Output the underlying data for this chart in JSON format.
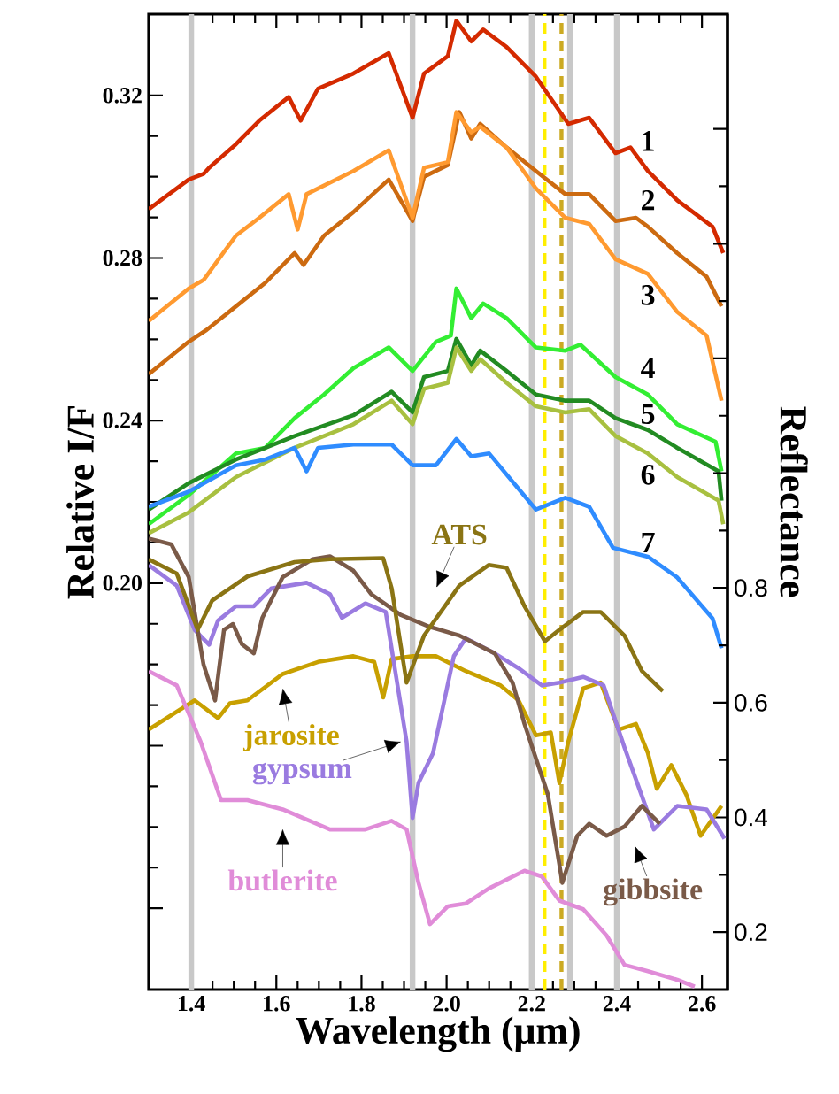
{
  "chart_data": {
    "type": "line",
    "xlabel": "Wavelength (μm)",
    "ylabel": "Relative I/F",
    "y2label": "Reflectance",
    "xlim": [
      1.3,
      2.66
    ],
    "ylim": [
      0.1,
      0.34
    ],
    "y2lim": [
      0.1,
      1.8
    ],
    "xticks": [
      1.4,
      1.6,
      1.8,
      {
        "value": 2.0,
        "label": "2.0"
      },
      2.2,
      2.4,
      2.6
    ],
    "yticks": [
      {
        "value": 0.12,
        "label": null
      },
      {
        "value": 0.16,
        "label": null
      },
      {
        "value": 0.2,
        "label": "0.20"
      },
      0.24,
      0.28,
      0.32
    ],
    "y2ticks": [
      0.2,
      0.4,
      0.6,
      0.8,
      {
        "value": 1.0,
        "label": null
      },
      {
        "value": 1.2,
        "label": null
      },
      {
        "value": 1.4,
        "label": null
      },
      {
        "value": 1.6,
        "label": null
      }
    ],
    "grid": false,
    "marker": "none",
    "line_style": "solid",
    "ref_lines": [
      {
        "axis": "x",
        "value": 1.4,
        "color": "#c8c8c8",
        "line_style": "solid"
      },
      {
        "axis": "x",
        "value": 1.92,
        "color": "#c8c8c8",
        "line_style": "solid"
      },
      {
        "axis": "x",
        "value": 2.2,
        "color": "#c8c8c8",
        "line_style": "solid"
      },
      {
        "axis": "x",
        "value": 2.29,
        "color": "#c8c8c8",
        "line_style": "solid"
      },
      {
        "axis": "x",
        "value": 2.4,
        "color": "#c8c8c8",
        "line_style": "solid"
      },
      {
        "axis": "x",
        "value": 2.23,
        "color": "#ffee00",
        "line_style": "dashed"
      },
      {
        "axis": "x",
        "value": 2.27,
        "color": "#ccaa22",
        "line_style": "dashed"
      }
    ],
    "series": [
      {
        "name": "1",
        "color": "#d42a00",
        "x": [
          1.3,
          1.394,
          1.429,
          1.442,
          1.505,
          1.56,
          1.629,
          1.657,
          1.698,
          1.781,
          1.864,
          1.92,
          1.947,
          2.003,
          2.023,
          2.058,
          2.086,
          2.141,
          2.21,
          2.286,
          2.335,
          2.397,
          2.432,
          2.473,
          2.542,
          2.625,
          2.65
        ],
        "values": [
          0.292,
          0.2993,
          0.3007,
          0.3022,
          0.308,
          0.3138,
          0.3196,
          0.3138,
          0.3217,
          0.3254,
          0.3304,
          0.3145,
          0.3254,
          0.3297,
          0.3384,
          0.3333,
          0.3362,
          0.3319,
          0.3246,
          0.313,
          0.3145,
          0.3058,
          0.3072,
          0.3014,
          0.2942,
          0.2877,
          0.2812
        ]
      },
      {
        "name": "2",
        "color": "#cc6a10",
        "x": [
          1.3,
          1.394,
          1.436,
          1.505,
          1.574,
          1.643,
          1.664,
          1.712,
          1.781,
          1.864,
          1.92,
          1.947,
          2.003,
          2.03,
          2.058,
          2.079,
          2.141,
          2.21,
          2.279,
          2.335,
          2.397,
          2.445,
          2.473,
          2.542,
          2.611,
          2.646
        ],
        "values": [
          0.2514,
          0.2594,
          0.2623,
          0.2681,
          0.2739,
          0.2812,
          0.2783,
          0.2855,
          0.2913,
          0.2993,
          0.2891,
          0.3,
          0.3029,
          0.3159,
          0.3094,
          0.313,
          0.3072,
          0.3014,
          0.2957,
          0.2957,
          0.2891,
          0.2899,
          0.2877,
          0.2812,
          0.2754,
          0.2681
        ]
      },
      {
        "name": "3",
        "color": "#ff9a30",
        "x": [
          1.3,
          1.394,
          1.429,
          1.505,
          1.56,
          1.629,
          1.65,
          1.671,
          1.781,
          1.864,
          1.92,
          1.947,
          2.003,
          2.023,
          2.058,
          2.079,
          2.141,
          2.21,
          2.279,
          2.335,
          2.397,
          2.473,
          2.542,
          2.611,
          2.646
        ],
        "values": [
          0.2645,
          0.2725,
          0.2746,
          0.2855,
          0.2899,
          0.2957,
          0.287,
          0.2957,
          0.3014,
          0.3065,
          0.2899,
          0.3022,
          0.3036,
          0.3159,
          0.3109,
          0.3123,
          0.3072,
          0.2971,
          0.2899,
          0.2884,
          0.2797,
          0.2761,
          0.2667,
          0.2609,
          0.2449
        ]
      },
      {
        "name": "4",
        "color": "#33ee33",
        "x": [
          1.3,
          1.394,
          1.505,
          1.574,
          1.643,
          1.712,
          1.781,
          1.864,
          1.92,
          1.975,
          2.01,
          2.023,
          2.058,
          2.086,
          2.141,
          2.21,
          2.279,
          2.314,
          2.397,
          2.473,
          2.542,
          2.632,
          2.646
        ],
        "values": [
          0.2145,
          0.2217,
          0.2319,
          0.2333,
          0.2406,
          0.2464,
          0.2529,
          0.258,
          0.2522,
          0.2594,
          0.2609,
          0.2725,
          0.2652,
          0.2688,
          0.2652,
          0.258,
          0.2572,
          0.2587,
          0.2507,
          0.2464,
          0.2391,
          0.2348,
          0.2275
        ]
      },
      {
        "name": "5",
        "color": "#228b22",
        "x": [
          1.3,
          1.394,
          1.505,
          1.643,
          1.781,
          1.871,
          1.92,
          1.947,
          2.003,
          2.023,
          2.058,
          2.079,
          2.141,
          2.21,
          2.279,
          2.335,
          2.397,
          2.473,
          2.542,
          2.639,
          2.646
        ],
        "values": [
          0.2181,
          0.2246,
          0.2304,
          0.2362,
          0.2413,
          0.2471,
          0.242,
          0.2507,
          0.2522,
          0.2601,
          0.2536,
          0.2572,
          0.2522,
          0.2464,
          0.2449,
          0.2449,
          0.2406,
          0.2377,
          0.2333,
          0.2275,
          0.2203
        ]
      },
      {
        "name": "6",
        "color": "#a8c040",
        "x": [
          1.3,
          1.394,
          1.505,
          1.643,
          1.781,
          1.871,
          1.92,
          1.947,
          2.003,
          2.023,
          2.058,
          2.079,
          2.141,
          2.21,
          2.279,
          2.335,
          2.397,
          2.473,
          2.542,
          2.639,
          2.65
        ],
        "values": [
          0.2123,
          0.2174,
          0.2261,
          0.2333,
          0.2391,
          0.2449,
          0.2391,
          0.2478,
          0.2493,
          0.258,
          0.2522,
          0.2551,
          0.2493,
          0.2435,
          0.242,
          0.2428,
          0.2362,
          0.2319,
          0.2261,
          0.2203,
          0.2145
        ]
      },
      {
        "name": "7",
        "color": "#2f8cff",
        "x": [
          1.3,
          1.394,
          1.505,
          1.574,
          1.643,
          1.671,
          1.698,
          1.781,
          1.871,
          1.92,
          1.975,
          2.023,
          2.058,
          2.1,
          2.169,
          2.21,
          2.279,
          2.335,
          2.391,
          2.473,
          2.542,
          2.625,
          2.646
        ],
        "values": [
          0.2188,
          0.2225,
          0.229,
          0.2304,
          0.2333,
          0.2275,
          0.2333,
          0.2341,
          0.2341,
          0.229,
          0.229,
          0.2355,
          0.2312,
          0.2319,
          0.2232,
          0.2181,
          0.221,
          0.2188,
          0.2087,
          0.2065,
          0.2014,
          0.1913,
          0.184
        ]
      },
      {
        "name": "jarosite",
        "axis": "y2",
        "color": "#c8a000",
        "x": [
          1.3,
          1.408,
          1.463,
          1.491,
          1.532,
          1.615,
          1.698,
          1.781,
          1.83,
          1.851,
          1.871,
          1.92,
          1.975,
          2.045,
          2.127,
          2.169,
          2.21,
          2.245,
          2.265,
          2.286,
          2.321,
          2.362,
          2.404,
          2.445,
          2.473,
          2.494,
          2.528,
          2.563,
          2.597,
          2.646
        ],
        "values": [
          0.553,
          0.604,
          0.573,
          0.599,
          0.604,
          0.65,
          0.671,
          0.681,
          0.671,
          0.609,
          0.676,
          0.681,
          0.681,
          0.655,
          0.63,
          0.604,
          0.543,
          0.548,
          0.46,
          0.532,
          0.625,
          0.635,
          0.553,
          0.563,
          0.512,
          0.45,
          0.491,
          0.44,
          0.368,
          0.42
        ]
      },
      {
        "name": "gypsum",
        "axis": "y2",
        "color": "#9a7be0",
        "x": [
          1.3,
          1.366,
          1.408,
          1.442,
          1.463,
          1.505,
          1.547,
          1.588,
          1.671,
          1.726,
          1.754,
          1.809,
          1.857,
          1.906,
          1.92,
          1.934,
          1.968,
          2.017,
          2.045,
          2.113,
          2.169,
          2.224,
          2.265,
          2.321,
          2.369,
          2.418,
          2.487,
          2.542,
          2.611,
          2.653
        ],
        "values": [
          0.84,
          0.804,
          0.727,
          0.701,
          0.743,
          0.768,
          0.768,
          0.799,
          0.809,
          0.789,
          0.748,
          0.773,
          0.758,
          0.532,
          0.399,
          0.46,
          0.512,
          0.681,
          0.712,
          0.686,
          0.66,
          0.63,
          0.635,
          0.645,
          0.63,
          0.522,
          0.379,
          0.42,
          0.414,
          0.363
        ]
      },
      {
        "name": "butlerite",
        "axis": "y2",
        "color": "#e08cd8",
        "x": [
          1.3,
          1.366,
          1.422,
          1.47,
          1.532,
          1.615,
          1.726,
          1.809,
          1.871,
          1.906,
          1.934,
          1.961,
          2.003,
          2.045,
          2.099,
          2.183,
          2.224,
          2.265,
          2.321,
          2.376,
          2.418,
          2.473,
          2.542,
          2.583
        ],
        "values": [
          0.655,
          0.63,
          0.532,
          0.43,
          0.43,
          0.414,
          0.379,
          0.379,
          0.394,
          0.379,
          0.286,
          0.214,
          0.245,
          0.25,
          0.276,
          0.307,
          0.297,
          0.255,
          0.24,
          0.194,
          0.143,
          0.132,
          0.117,
          0.105
        ]
      },
      {
        "name": "gibbsite",
        "axis": "y2",
        "color": "#7a5a48",
        "x": [
          1.3,
          1.353,
          1.394,
          1.429,
          1.456,
          1.477,
          1.498,
          1.519,
          1.547,
          1.567,
          1.615,
          1.685,
          1.726,
          1.781,
          1.823,
          1.892,
          1.961,
          2.03,
          2.113,
          2.155,
          2.183,
          2.238,
          2.272,
          2.307,
          2.335,
          2.376,
          2.418,
          2.459,
          2.501
        ],
        "values": [
          0.886,
          0.876,
          0.819,
          0.666,
          0.604,
          0.727,
          0.737,
          0.702,
          0.686,
          0.748,
          0.819,
          0.85,
          0.855,
          0.83,
          0.789,
          0.753,
          0.732,
          0.717,
          0.686,
          0.635,
          0.563,
          0.44,
          0.286,
          0.368,
          0.389,
          0.368,
          0.384,
          0.42,
          0.389
        ]
      },
      {
        "name": "ATS",
        "axis": "y2",
        "color": "#8a7414",
        "x": [
          1.3,
          1.366,
          1.415,
          1.449,
          1.532,
          1.643,
          1.726,
          1.851,
          1.871,
          1.906,
          1.947,
          2.03,
          2.099,
          2.141,
          2.183,
          2.231,
          2.265,
          2.321,
          2.362,
          2.418,
          2.459,
          2.508
        ],
        "values": [
          0.85,
          0.825,
          0.727,
          0.778,
          0.82,
          0.845,
          0.85,
          0.852,
          0.799,
          0.635,
          0.717,
          0.804,
          0.84,
          0.835,
          0.768,
          0.707,
          0.727,
          0.758,
          0.758,
          0.717,
          0.655,
          0.62
        ]
      }
    ]
  }
}
